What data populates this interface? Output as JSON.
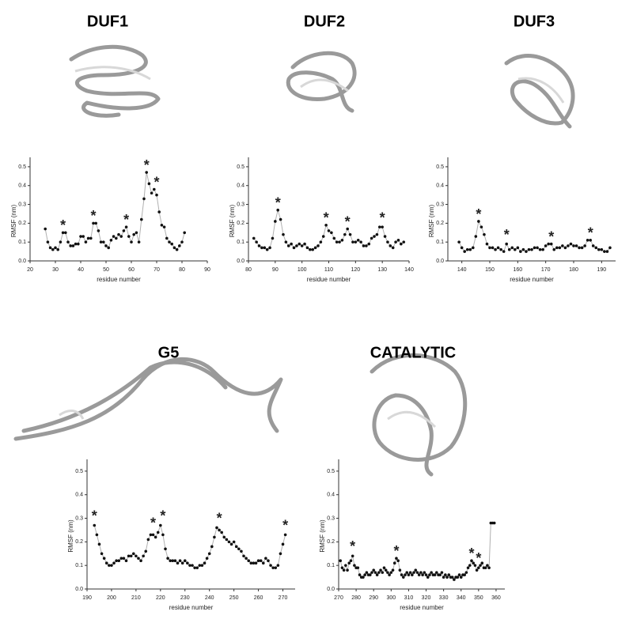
{
  "chart_data": [
    {
      "type": "line",
      "title": "DUF1",
      "xlabel": "residue number",
      "ylabel": "RMSF (nm)",
      "line_color": "#b0b0b0",
      "marker_color": "#111111",
      "x": [
        26,
        27,
        28,
        29,
        30,
        31,
        32,
        33,
        34,
        35,
        36,
        37,
        38,
        39,
        40,
        41,
        42,
        43,
        44,
        45,
        46,
        47,
        48,
        49,
        50,
        51,
        52,
        53,
        54,
        55,
        56,
        57,
        58,
        59,
        60,
        61,
        62,
        63,
        64,
        65,
        66,
        67,
        68,
        69,
        70,
        71,
        72,
        73,
        74,
        75,
        76,
        77,
        78,
        79,
        80,
        81
      ],
      "values": [
        0.17,
        0.1,
        0.07,
        0.06,
        0.07,
        0.06,
        0.1,
        0.15,
        0.15,
        0.1,
        0.08,
        0.08,
        0.09,
        0.09,
        0.13,
        0.13,
        0.1,
        0.12,
        0.12,
        0.2,
        0.2,
        0.16,
        0.1,
        0.1,
        0.08,
        0.07,
        0.11,
        0.13,
        0.12,
        0.14,
        0.13,
        0.16,
        0.18,
        0.13,
        0.1,
        0.14,
        0.15,
        0.1,
        0.22,
        0.33,
        0.47,
        0.41,
        0.36,
        0.38,
        0.35,
        0.26,
        0.19,
        0.18,
        0.12,
        0.1,
        0.09,
        0.07,
        0.06,
        0.08,
        0.1,
        0.15
      ],
      "xlim": [
        20,
        90
      ],
      "xticks": [
        20,
        30,
        40,
        50,
        60,
        70,
        80,
        90
      ],
      "ylim": [
        0,
        0.55
      ],
      "yticks": [
        {
          "value": 0,
          "label": "0.0"
        },
        0.1,
        0.2,
        0.3,
        0.4,
        0.5
      ],
      "annotations": [
        {
          "text": "*",
          "x": 33,
          "y": 0.2,
          "color": "#e8262a"
        },
        {
          "text": "*",
          "x": 45,
          "y": 0.25,
          "color": "#1f77c0"
        },
        {
          "text": "*",
          "x": 58,
          "y": 0.23,
          "color": "#1aa060"
        },
        {
          "text": "*",
          "x": 66,
          "y": 0.52,
          "color": "#f2b824"
        },
        {
          "text": "*",
          "x": 70,
          "y": 0.43,
          "color": "#ee4ba6"
        }
      ]
    },
    {
      "type": "line",
      "title": "DUF2",
      "xlabel": "residue number",
      "ylabel": "RMSF (nm)",
      "line_color": "#b0b0b0",
      "marker_color": "#111111",
      "x": [
        82,
        83,
        84,
        85,
        86,
        87,
        88,
        89,
        90,
        91,
        92,
        93,
        94,
        95,
        96,
        97,
        98,
        99,
        100,
        101,
        102,
        103,
        104,
        105,
        106,
        107,
        108,
        109,
        110,
        111,
        112,
        113,
        114,
        115,
        116,
        117,
        118,
        119,
        120,
        121,
        122,
        123,
        124,
        125,
        126,
        127,
        128,
        129,
        130,
        131,
        132,
        133,
        134,
        135,
        136,
        137,
        138
      ],
      "values": [
        0.12,
        0.1,
        0.08,
        0.07,
        0.07,
        0.06,
        0.07,
        0.12,
        0.21,
        0.27,
        0.22,
        0.14,
        0.1,
        0.08,
        0.09,
        0.07,
        0.08,
        0.09,
        0.08,
        0.09,
        0.07,
        0.06,
        0.06,
        0.07,
        0.08,
        0.1,
        0.13,
        0.19,
        0.16,
        0.15,
        0.12,
        0.1,
        0.1,
        0.11,
        0.14,
        0.17,
        0.14,
        0.1,
        0.1,
        0.11,
        0.1,
        0.08,
        0.08,
        0.09,
        0.12,
        0.13,
        0.14,
        0.18,
        0.18,
        0.13,
        0.1,
        0.08,
        0.07,
        0.1,
        0.11,
        0.09,
        0.1
      ],
      "xlim": [
        80,
        140
      ],
      "xticks": [
        80,
        90,
        100,
        110,
        120,
        130,
        140
      ],
      "ylim": [
        0,
        0.55
      ],
      "yticks": [
        {
          "value": 0,
          "label": "0.0"
        },
        0.1,
        0.2,
        0.3,
        0.4,
        0.5
      ],
      "annotations": [
        {
          "text": "*",
          "x": 91,
          "y": 0.32,
          "color": "#e8262a"
        },
        {
          "text": "*",
          "x": 109,
          "y": 0.24,
          "color": "#1f77c0"
        },
        {
          "text": "*",
          "x": 117,
          "y": 0.22,
          "color": "#1aa060"
        },
        {
          "text": "*",
          "x": 130,
          "y": 0.24,
          "color": "#f2b824"
        }
      ]
    },
    {
      "type": "line",
      "title": "DUF3",
      "xlabel": "residue number",
      "ylabel": "RMSF (nm)",
      "line_color": "#b0b0b0",
      "marker_color": "#111111",
      "x": [
        139,
        140,
        141,
        142,
        143,
        144,
        145,
        146,
        147,
        148,
        149,
        150,
        151,
        152,
        153,
        154,
        155,
        156,
        157,
        158,
        159,
        160,
        161,
        162,
        163,
        164,
        165,
        166,
        167,
        168,
        169,
        170,
        171,
        172,
        173,
        174,
        175,
        176,
        177,
        178,
        179,
        180,
        181,
        182,
        183,
        184,
        185,
        186,
        187,
        188,
        189,
        190,
        191,
        192,
        193
      ],
      "values": [
        0.1,
        0.07,
        0.05,
        0.06,
        0.06,
        0.07,
        0.13,
        0.21,
        0.18,
        0.14,
        0.09,
        0.07,
        0.07,
        0.06,
        0.07,
        0.06,
        0.05,
        0.09,
        0.06,
        0.07,
        0.06,
        0.07,
        0.05,
        0.06,
        0.05,
        0.06,
        0.06,
        0.07,
        0.07,
        0.06,
        0.06,
        0.08,
        0.09,
        0.09,
        0.06,
        0.07,
        0.07,
        0.08,
        0.07,
        0.08,
        0.09,
        0.08,
        0.08,
        0.07,
        0.07,
        0.08,
        0.11,
        0.11,
        0.08,
        0.07,
        0.06,
        0.06,
        0.05,
        0.05,
        0.07
      ],
      "xlim": [
        135,
        195
      ],
      "xticks": [
        140,
        150,
        160,
        170,
        180,
        190
      ],
      "ylim": [
        0,
        0.55
      ],
      "yticks": [
        {
          "value": 0,
          "label": "0.0"
        },
        0.1,
        0.2,
        0.3,
        0.4,
        0.5
      ],
      "annotations": [
        {
          "text": "*",
          "x": 146,
          "y": 0.26,
          "color": "#e8262a"
        },
        {
          "text": "*",
          "x": 156,
          "y": 0.15,
          "color": "#1f77c0"
        },
        {
          "text": "*",
          "x": 172,
          "y": 0.14,
          "color": "#1aa060"
        },
        {
          "text": "*",
          "x": 186,
          "y": 0.16,
          "color": "#f2b824"
        }
      ]
    },
    {
      "type": "line",
      "title": "G5",
      "xlabel": "residue number",
      "ylabel": "RMSF (nm)",
      "line_color": "#b0b0b0",
      "marker_color": "#111111",
      "x": [
        193,
        194,
        195,
        196,
        197,
        198,
        199,
        200,
        201,
        202,
        203,
        204,
        205,
        206,
        207,
        208,
        209,
        210,
        211,
        212,
        213,
        214,
        215,
        216,
        217,
        218,
        219,
        220,
        221,
        222,
        223,
        224,
        225,
        226,
        227,
        228,
        229,
        230,
        231,
        232,
        233,
        234,
        235,
        236,
        237,
        238,
        239,
        240,
        241,
        242,
        243,
        244,
        245,
        246,
        247,
        248,
        249,
        250,
        251,
        252,
        253,
        254,
        255,
        256,
        257,
        258,
        259,
        260,
        261,
        262,
        263,
        264,
        265,
        266,
        267,
        268,
        269,
        270,
        271
      ],
      "values": [
        0.27,
        0.23,
        0.19,
        0.15,
        0.13,
        0.11,
        0.1,
        0.1,
        0.11,
        0.12,
        0.12,
        0.13,
        0.13,
        0.12,
        0.14,
        0.14,
        0.15,
        0.14,
        0.13,
        0.12,
        0.14,
        0.16,
        0.21,
        0.23,
        0.23,
        0.22,
        0.24,
        0.27,
        0.23,
        0.17,
        0.13,
        0.12,
        0.12,
        0.12,
        0.11,
        0.12,
        0.11,
        0.12,
        0.11,
        0.1,
        0.1,
        0.09,
        0.09,
        0.1,
        0.1,
        0.11,
        0.13,
        0.15,
        0.18,
        0.22,
        0.26,
        0.25,
        0.24,
        0.22,
        0.21,
        0.2,
        0.19,
        0.2,
        0.18,
        0.17,
        0.16,
        0.14,
        0.13,
        0.12,
        0.11,
        0.11,
        0.11,
        0.12,
        0.12,
        0.11,
        0.13,
        0.12,
        0.1,
        0.09,
        0.09,
        0.1,
        0.15,
        0.19,
        0.23
      ],
      "xlim": [
        190,
        275
      ],
      "xticks": [
        190,
        200,
        210,
        220,
        230,
        240,
        250,
        260,
        270
      ],
      "ylim": [
        0,
        0.55
      ],
      "yticks": [
        {
          "value": 0,
          "label": "0.0"
        },
        0.1,
        0.2,
        0.3,
        0.4,
        0.5
      ],
      "annotations": [
        {
          "text": "*",
          "x": 193,
          "y": 0.32,
          "color": "#e8262a"
        },
        {
          "text": "*",
          "x": 217,
          "y": 0.29,
          "color": "#1f77c0"
        },
        {
          "text": "*",
          "x": 221,
          "y": 0.32,
          "color": "#1aa060"
        },
        {
          "text": "*",
          "x": 244,
          "y": 0.31,
          "color": "#f2b824"
        },
        {
          "text": "*",
          "x": 271,
          "y": 0.28,
          "color": "#ee4ba6"
        }
      ]
    },
    {
      "type": "line",
      "title": "CATALYTIC",
      "xlabel": "residue number",
      "ylabel": "RMSF (nm)",
      "line_color": "#b0b0b0",
      "marker_color": "#111111",
      "x": [
        271,
        272,
        273,
        274,
        275,
        276,
        277,
        278,
        279,
        280,
        281,
        282,
        283,
        284,
        285,
        286,
        287,
        288,
        289,
        290,
        291,
        292,
        293,
        294,
        295,
        296,
        297,
        298,
        299,
        300,
        301,
        302,
        303,
        304,
        305,
        306,
        307,
        308,
        309,
        310,
        311,
        312,
        313,
        314,
        315,
        316,
        317,
        318,
        319,
        320,
        321,
        322,
        323,
        324,
        325,
        326,
        327,
        328,
        329,
        330,
        331,
        332,
        333,
        334,
        335,
        336,
        337,
        338,
        339,
        340,
        341,
        342,
        343,
        344,
        345,
        346,
        347,
        348,
        349,
        350,
        351,
        352,
        353,
        354,
        355,
        356,
        357,
        358,
        359
      ],
      "values": [
        0.12,
        0.09,
        0.08,
        0.1,
        0.08,
        0.11,
        0.12,
        0.14,
        0.1,
        0.09,
        0.09,
        0.06,
        0.05,
        0.05,
        0.06,
        0.07,
        0.06,
        0.06,
        0.07,
        0.08,
        0.07,
        0.06,
        0.07,
        0.08,
        0.07,
        0.09,
        0.08,
        0.07,
        0.06,
        0.07,
        0.08,
        0.11,
        0.13,
        0.12,
        0.08,
        0.06,
        0.05,
        0.06,
        0.07,
        0.06,
        0.07,
        0.06,
        0.07,
        0.08,
        0.07,
        0.06,
        0.07,
        0.06,
        0.07,
        0.06,
        0.05,
        0.06,
        0.07,
        0.06,
        0.06,
        0.07,
        0.06,
        0.06,
        0.07,
        0.05,
        0.06,
        0.05,
        0.06,
        0.05,
        0.05,
        0.04,
        0.05,
        0.05,
        0.06,
        0.05,
        0.06,
        0.06,
        0.07,
        0.09,
        0.1,
        0.12,
        0.11,
        0.1,
        0.08,
        0.09,
        0.1,
        0.11,
        0.09,
        0.09,
        0.1,
        0.09,
        0.28,
        0.28,
        0.28
      ],
      "xlim": [
        270,
        365
      ],
      "xticks": [
        270,
        280,
        290,
        300,
        310,
        320,
        330,
        340,
        350,
        360
      ],
      "ylim": [
        0,
        0.55
      ],
      "yticks": [
        {
          "value": 0,
          "label": "0.0"
        },
        0.1,
        0.2,
        0.3,
        0.4,
        0.5
      ],
      "annotations": [
        {
          "text": "*",
          "x": 278,
          "y": 0.19,
          "color": "#e8262a"
        },
        {
          "text": "*",
          "x": 303,
          "y": 0.17,
          "color": "#1f77c0"
        },
        {
          "text": "*",
          "x": 346,
          "y": 0.16,
          "color": "#1aa060"
        },
        {
          "text": "*",
          "x": 350,
          "y": 0.14,
          "color": "#f2b824"
        }
      ]
    }
  ]
}
